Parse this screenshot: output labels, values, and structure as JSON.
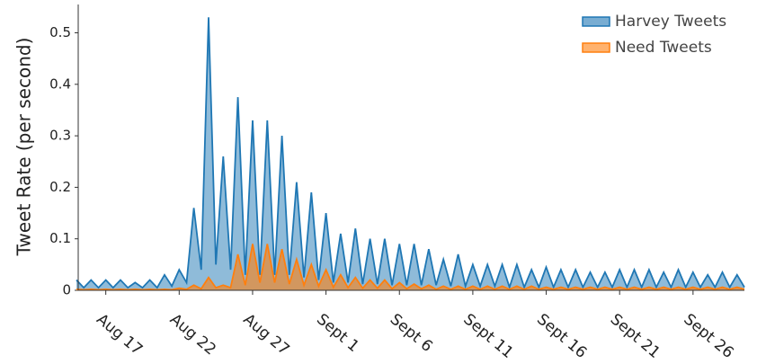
{
  "chart_data": {
    "type": "area",
    "y_label": "Tweet Rate (per second)",
    "categories": [
      null,
      null,
      null,
      null,
      "Aug 17",
      null,
      null,
      null,
      null,
      null,
      null,
      null,
      null,
      null,
      "Aug 22",
      null,
      null,
      null,
      null,
      null,
      null,
      null,
      null,
      null,
      "Aug 27",
      null,
      null,
      null,
      null,
      null,
      null,
      null,
      null,
      null,
      "Sept 1",
      null,
      null,
      null,
      null,
      null,
      null,
      null,
      null,
      null,
      "Sept 6",
      null,
      null,
      null,
      null,
      null,
      null,
      null,
      null,
      null,
      "Sept 11",
      null,
      null,
      null,
      null,
      null,
      null,
      null,
      null,
      null,
      "Sept 16",
      null,
      null,
      null,
      null,
      null,
      null,
      null,
      null,
      null,
      "Sept 21",
      null,
      null,
      null,
      null,
      null,
      null,
      null,
      null,
      null,
      "Sept 26",
      null,
      null,
      null,
      null,
      null,
      null,
      null
    ],
    "series": [
      {
        "name": "Harvey Tweets",
        "color": "#1f77b4",
        "values": [
          0.02,
          0.005,
          0.02,
          0.005,
          0.02,
          0.005,
          0.02,
          0.005,
          0.015,
          0.005,
          0.02,
          0.005,
          0.03,
          0.008,
          0.04,
          0.015,
          0.16,
          0.04,
          0.53,
          0.05,
          0.26,
          0.04,
          0.375,
          0.03,
          0.33,
          0.03,
          0.33,
          0.03,
          0.3,
          0.03,
          0.21,
          0.025,
          0.19,
          0.02,
          0.15,
          0.015,
          0.11,
          0.015,
          0.12,
          0.012,
          0.1,
          0.012,
          0.1,
          0.01,
          0.09,
          0.01,
          0.09,
          0.01,
          0.08,
          0.01,
          0.06,
          0.008,
          0.07,
          0.008,
          0.05,
          0.008,
          0.05,
          0.008,
          0.05,
          0.006,
          0.05,
          0.006,
          0.04,
          0.006,
          0.045,
          0.006,
          0.04,
          0.006,
          0.04,
          0.006,
          0.035,
          0.006,
          0.035,
          0.006,
          0.04,
          0.006,
          0.04,
          0.006,
          0.04,
          0.006,
          0.035,
          0.006,
          0.04,
          0.006,
          0.035,
          0.006,
          0.03,
          0.006,
          0.035,
          0.006,
          0.03,
          0.006
        ]
      },
      {
        "name": "Need Tweets",
        "color": "#ff7f0e",
        "values": [
          0.002,
          0.001,
          0.002,
          0.001,
          0.002,
          0.001,
          0.002,
          0.001,
          0.002,
          0.001,
          0.002,
          0.001,
          0.002,
          0.001,
          0.004,
          0.002,
          0.01,
          0.003,
          0.025,
          0.005,
          0.01,
          0.005,
          0.07,
          0.01,
          0.09,
          0.015,
          0.09,
          0.015,
          0.08,
          0.012,
          0.06,
          0.01,
          0.05,
          0.008,
          0.04,
          0.006,
          0.03,
          0.005,
          0.025,
          0.004,
          0.02,
          0.004,
          0.02,
          0.003,
          0.015,
          0.003,
          0.012,
          0.003,
          0.01,
          0.002,
          0.008,
          0.002,
          0.008,
          0.002,
          0.008,
          0.002,
          0.008,
          0.002,
          0.008,
          0.002,
          0.008,
          0.002,
          0.008,
          0.002,
          0.006,
          0.002,
          0.006,
          0.002,
          0.006,
          0.002,
          0.006,
          0.002,
          0.006,
          0.002,
          0.006,
          0.002,
          0.006,
          0.002,
          0.006,
          0.002,
          0.006,
          0.002,
          0.006,
          0.002,
          0.006,
          0.002,
          0.006,
          0.002,
          0.006,
          0.002,
          0.006,
          0.002
        ]
      }
    ],
    "ylim": [
      0,
      0.555
    ],
    "yticks": [
      0,
      0.1,
      0.2,
      0.3,
      0.4,
      0.5
    ],
    "legend": "top-right"
  }
}
